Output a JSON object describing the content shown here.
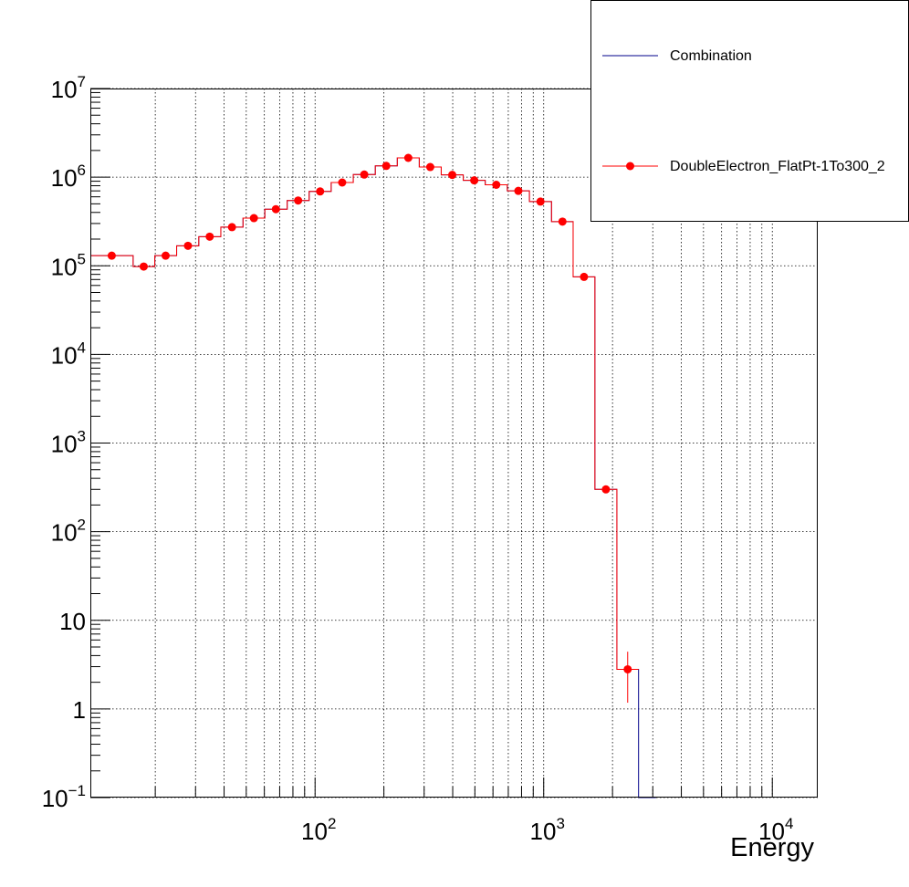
{
  "chart_data": {
    "type": "line",
    "xlabel": "Energy",
    "ylabel": "",
    "x_scale": "log",
    "y_scale": "log",
    "xlim": [
      10.4,
      15800
    ],
    "ylim": [
      0.1,
      10000000
    ],
    "grid": true,
    "legend_position": "top-right",
    "x_tick_labels": [
      {
        "value": 100,
        "base": "10",
        "exp": "2"
      },
      {
        "value": 1000,
        "base": "10",
        "exp": "3"
      },
      {
        "value": 10000,
        "base": "10",
        "exp": "4"
      }
    ],
    "y_tick_labels": [
      {
        "value": 10000000,
        "base": "10",
        "exp": "7"
      },
      {
        "value": 1000000,
        "base": "10",
        "exp": "6"
      },
      {
        "value": 100000,
        "base": "10",
        "exp": "5"
      },
      {
        "value": 10000,
        "base": "10",
        "exp": "4"
      },
      {
        "value": 1000,
        "base": "10",
        "exp": "3"
      },
      {
        "value": 100,
        "base": "10",
        "exp": "2"
      },
      {
        "value": 10,
        "base": "10",
        "exp": ""
      },
      {
        "value": 1,
        "base": "1",
        "exp": ""
      },
      {
        "value": 0.1,
        "base": "10",
        "exp": "−1"
      }
    ],
    "bin_edges": [
      10.4,
      16.0,
      19.9,
      24.8,
      31.0,
      38.7,
      48.4,
      60.3,
      75.5,
      94.2,
      117.6,
      146.9,
      183.4,
      228.9,
      285.6,
      356.3,
      444.7,
      554.9,
      693.2,
      866.0,
      1082,
      1345,
      1675,
      2090,
      2600,
      3100
    ],
    "series": [
      {
        "name": "Combination",
        "style": "histogram",
        "color": "#00008b",
        "values": [
          130000,
          98000,
          130000,
          168000,
          213000,
          273000,
          345000,
          435000,
          545000,
          690000,
          870000,
          1070000,
          1340000,
          1650000,
          1300000,
          1060000,
          920000,
          820000,
          700000,
          530000,
          315000,
          75000,
          300,
          2.8,
          1e-05
        ]
      },
      {
        "name": "DoubleElectron_FlatPt-1To300_2",
        "style": "markers-with-errors",
        "color": "#ff0000",
        "x": [
          12.9,
          17.8,
          22.2,
          27.8,
          34.6,
          43.3,
          54.0,
          67.4,
          84.3,
          105.2,
          131.4,
          164.1,
          204.8,
          255.7,
          319.0,
          398.1,
          496.8,
          620.2,
          774.6,
          968.0,
          1208,
          1501,
          1871,
          2330,
          2840
        ],
        "y": [
          130000,
          98000,
          130000,
          168000,
          213000,
          273000,
          345000,
          435000,
          545000,
          690000,
          870000,
          1070000,
          1340000,
          1650000,
          1300000,
          1060000,
          920000,
          820000,
          700000,
          530000,
          315000,
          75000,
          300,
          2.8,
          null
        ],
        "y_err_rel": [
          0,
          0,
          0,
          0,
          0,
          0,
          0,
          0,
          0,
          0,
          0,
          0,
          0,
          0,
          0,
          0,
          0,
          0,
          0,
          0,
          0,
          0,
          0.06,
          0.58,
          0
        ]
      }
    ]
  }
}
